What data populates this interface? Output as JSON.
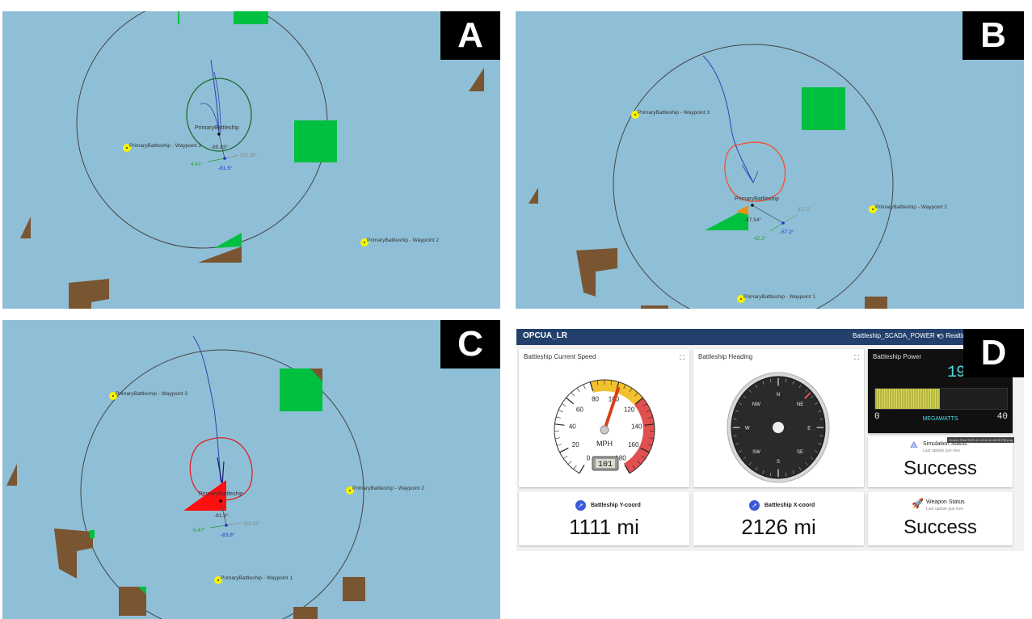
{
  "panels": {
    "A": {
      "label": "A",
      "ship_label": "PrimaryBattleship",
      "waypoint_labels": [
        "PrimaryBattleship - Waypoint 3",
        "PrimaryBattleship - Waypoint 2"
      ],
      "angle_readouts": [
        "-85.83°",
        "255.59°",
        "4.41°",
        "-81.5°"
      ]
    },
    "B": {
      "label": "B",
      "ship_label": "PrimaryBattleship",
      "waypoint_labels": [
        "PrimaryBattleship - Waypoint 3",
        "PrimaryBattleship - Waypoint 2",
        "PrimaryBattleship - Waypoint 1"
      ],
      "angle_readouts": [
        "-47.54°",
        "317.5°",
        "-57.2°",
        "42.2°"
      ]
    },
    "C": {
      "label": "C",
      "ship_label": "PrimaryBattleship",
      "waypoint_labels": [
        "PrimaryBattleship - Waypoint 3",
        "PrimaryBattleship - Waypoint 2",
        "PrimaryBattleship - Waypoint 1"
      ],
      "angle_readouts": [
        "-81.9°",
        "353.53°",
        "6.47°",
        "-83.8°"
      ]
    },
    "D": {
      "label": "D"
    }
  },
  "dashboard": {
    "app_title": "OPCUA_LR",
    "selector": "Battleship_SCADA_POWER",
    "time_label": "Realtim",
    "speed": {
      "title": "Battleship Current Speed",
      "ticks": [
        "0",
        "20",
        "40",
        "60",
        "80",
        "100",
        "120",
        "140",
        "160",
        "180"
      ],
      "unit": "MPH",
      "value": 101,
      "readout": "101"
    },
    "heading": {
      "title": "Battleship Heading",
      "directions": [
        "N",
        "NE",
        "E",
        "SE",
        "S",
        "SW",
        "W",
        "NW"
      ],
      "value_deg": 45
    },
    "power": {
      "title": "Battleship Power",
      "value": "19.7",
      "value_num": 19.7,
      "min": "0",
      "max": "40",
      "unit": "MEGAWATTS"
    },
    "tooltip": "Screen Shot 2023-11-10 at 11.48.09 PM.png",
    "simulation": {
      "title": "Simulation Status",
      "updated": "Last update just now",
      "value": "Success"
    },
    "y_coord": {
      "title": "Battleship Y-coord",
      "value": "1111 mi"
    },
    "x_coord": {
      "title": "Battleship X-coord",
      "value": "2126 mi"
    },
    "weapon": {
      "title": "Weapon Status",
      "updated": "Last update just now",
      "value": "Success"
    }
  },
  "colors": {
    "water": "#8fbfd6",
    "land": "#7a5531",
    "green_block": "#00c040",
    "waypoint": "#f5f500",
    "trail": "#3040b0",
    "ring_A": "#1f6b2d",
    "ring_B": "#f05030",
    "ring_C": "#e02020",
    "header": "#22406b",
    "gauge_red": "#e05050",
    "gauge_yellow": "#f2c12e"
  }
}
